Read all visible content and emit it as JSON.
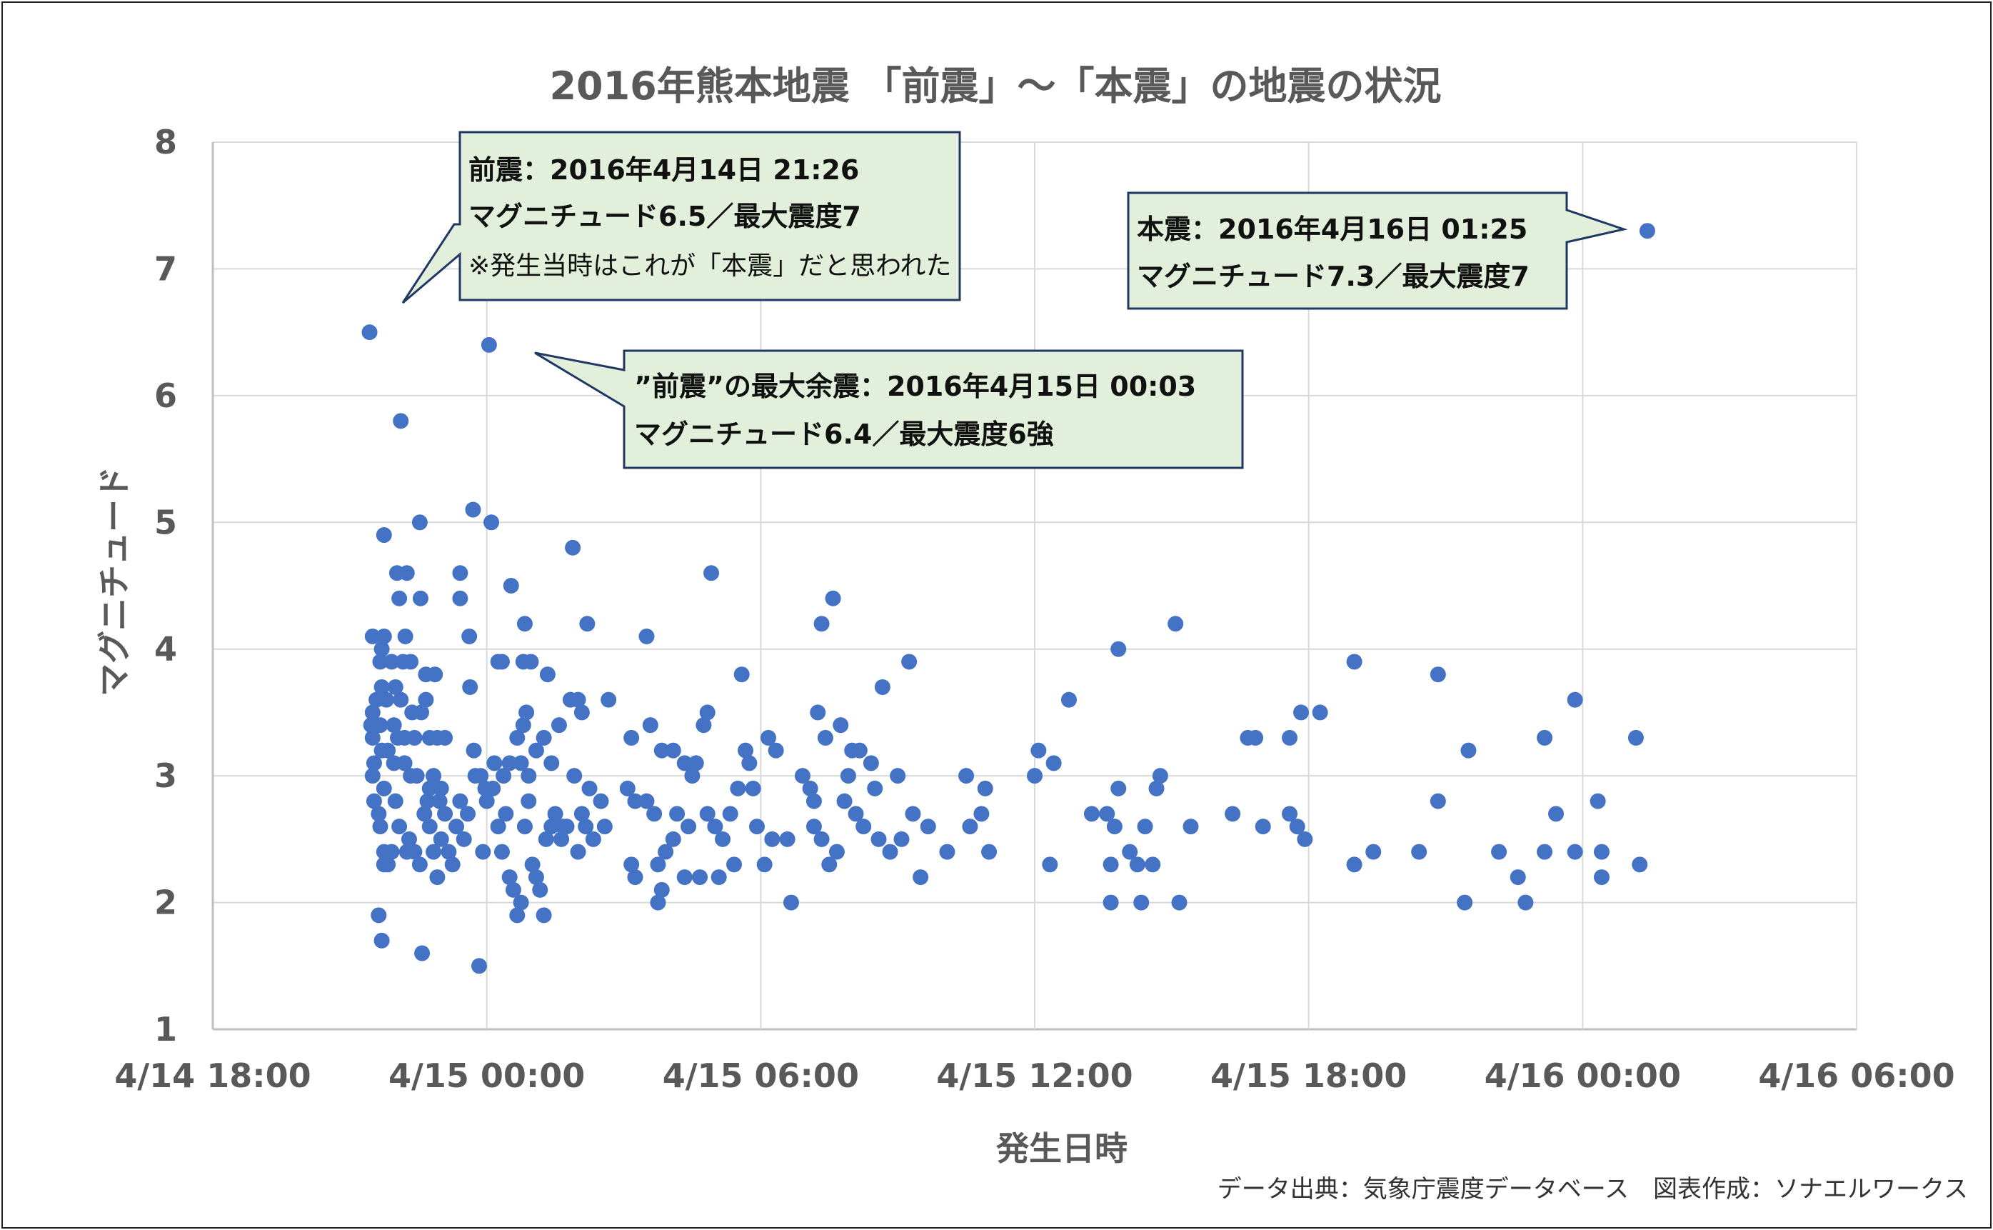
{
  "chart_data": {
    "type": "scatter",
    "title": "2016年熊本地震 「前震」〜「本震」の地震の状況",
    "xlabel": "発生日時",
    "ylabel": "マグニチュード",
    "x_unit": "hours",
    "xlim": [
      "2016-04-14 18:00",
      "2016-04-16 06:00"
    ],
    "x_ticks": [
      {
        "value": "2016-04-14 18:00",
        "label": "4/14 18:00"
      },
      {
        "value": "2016-04-15 00:00",
        "label": "4/15 00:00"
      },
      {
        "value": "2016-04-15 06:00",
        "label": "4/15 06:00"
      },
      {
        "value": "2016-04-15 12:00",
        "label": "4/15 12:00"
      },
      {
        "value": "2016-04-15 18:00",
        "label": "4/15 18:00"
      },
      {
        "value": "2016-04-16 00:00",
        "label": "4/16 00:00"
      },
      {
        "value": "2016-04-16 06:00",
        "label": "4/16 06:00"
      }
    ],
    "ylim": [
      1,
      8
    ],
    "y_ticks": [
      1,
      2,
      3,
      4,
      5,
      6,
      7,
      8
    ],
    "grid": true,
    "marker_color": "#4472c4",
    "points": [
      [
        "2016-04-14 21:26",
        6.5
      ],
      [
        "2016-04-15 00:03",
        6.4
      ],
      [
        "2016-04-16 01:25",
        7.3
      ],
      [
        "2016-04-14 22:07",
        5.8
      ],
      [
        "2016-04-14 21:45",
        4.9
      ],
      [
        "2016-04-14 22:32",
        5.0
      ],
      [
        "2016-04-14 23:42",
        5.1
      ],
      [
        "2016-04-15 00:06",
        5.0
      ],
      [
        "2016-04-15 01:53",
        4.8
      ],
      [
        "2016-04-14 22:15",
        4.6
      ],
      [
        "2016-04-14 22:02",
        4.6
      ],
      [
        "2016-04-14 22:05",
        4.4
      ],
      [
        "2016-04-14 22:33",
        4.4
      ],
      [
        "2016-04-14 23:25",
        4.6
      ],
      [
        "2016-04-14 23:25",
        4.4
      ],
      [
        "2016-04-15 00:32",
        4.5
      ],
      [
        "2016-04-15 00:50",
        4.2
      ],
      [
        "2016-04-15 02:12",
        4.2
      ],
      [
        "2016-04-14 21:30",
        4.1
      ],
      [
        "2016-04-14 21:45",
        4.1
      ],
      [
        "2016-04-14 22:13",
        4.1
      ],
      [
        "2016-04-14 21:42",
        4.0
      ],
      [
        "2016-04-14 22:10",
        3.9
      ],
      [
        "2016-04-14 22:20",
        3.9
      ],
      [
        "2016-04-14 21:55",
        3.9
      ],
      [
        "2016-04-14 21:40",
        3.9
      ],
      [
        "2016-04-14 22:40",
        3.8
      ],
      [
        "2016-04-14 22:52",
        3.8
      ],
      [
        "2016-04-14 23:37",
        4.1
      ],
      [
        "2016-04-15 00:15",
        3.9
      ],
      [
        "2016-04-15 00:20",
        3.9
      ],
      [
        "2016-04-15 00:48",
        3.9
      ],
      [
        "2016-04-15 00:58",
        3.9
      ],
      [
        "2016-04-15 01:20",
        3.8
      ],
      [
        "2016-04-14 23:38",
        3.7
      ],
      [
        "2016-04-14 21:42",
        3.7
      ],
      [
        "2016-04-14 22:00",
        3.7
      ],
      [
        "2016-04-14 21:30",
        3.5
      ],
      [
        "2016-04-14 21:35",
        3.6
      ],
      [
        "2016-04-14 21:48",
        3.6
      ],
      [
        "2016-04-14 22:07",
        3.6
      ],
      [
        "2016-04-14 22:22",
        3.5
      ],
      [
        "2016-04-14 22:34",
        3.5
      ],
      [
        "2016-04-14 22:40",
        3.6
      ],
      [
        "2016-04-14 21:28",
        3.4
      ],
      [
        "2016-04-14 21:40",
        3.4
      ],
      [
        "2016-04-14 21:58",
        3.4
      ],
      [
        "2016-04-14 22:12",
        3.3
      ],
      [
        "2016-04-14 21:30",
        3.3
      ],
      [
        "2016-04-14 21:50",
        3.2
      ],
      [
        "2016-04-14 22:03",
        3.3
      ],
      [
        "2016-04-14 22:25",
        3.3
      ],
      [
        "2016-04-14 22:45",
        3.3
      ],
      [
        "2016-04-14 22:55",
        3.3
      ],
      [
        "2016-04-14 23:05",
        3.3
      ],
      [
        "2016-04-14 21:32",
        3.1
      ],
      [
        "2016-04-14 21:42",
        3.2
      ],
      [
        "2016-04-14 21:58",
        3.1
      ],
      [
        "2016-04-14 22:12",
        3.1
      ],
      [
        "2016-04-14 22:20",
        3.0
      ],
      [
        "2016-04-14 22:28",
        3.0
      ],
      [
        "2016-04-14 21:30",
        3.0
      ],
      [
        "2016-04-14 21:45",
        2.9
      ],
      [
        "2016-04-14 23:00",
        2.9
      ],
      [
        "2016-04-14 22:50",
        3.0
      ],
      [
        "2016-04-14 23:43",
        3.2
      ],
      [
        "2016-04-14 23:45",
        3.0
      ],
      [
        "2016-04-14 23:52",
        3.0
      ],
      [
        "2016-04-14 23:58",
        2.9
      ],
      [
        "2016-04-15 00:10",
        3.1
      ],
      [
        "2016-04-15 00:22",
        3.0
      ],
      [
        "2016-04-15 00:30",
        3.1
      ],
      [
        "2016-04-15 00:45",
        3.1
      ],
      [
        "2016-04-15 00:55",
        3.0
      ],
      [
        "2016-04-15 00:40",
        3.3
      ],
      [
        "2016-04-15 00:48",
        3.4
      ],
      [
        "2016-04-15 00:52",
        3.5
      ],
      [
        "2016-04-15 01:05",
        3.2
      ],
      [
        "2016-04-15 01:15",
        3.3
      ],
      [
        "2016-04-15 01:25",
        3.1
      ],
      [
        "2016-04-15 01:35",
        3.4
      ],
      [
        "2016-04-15 01:50",
        3.6
      ],
      [
        "2016-04-15 02:05",
        3.5
      ],
      [
        "2016-04-15 02:00",
        3.6
      ],
      [
        "2016-04-15 02:40",
        3.6
      ],
      [
        "2016-04-15 01:55",
        3.0
      ],
      [
        "2016-04-15 02:15",
        2.9
      ],
      [
        "2016-04-15 02:30",
        2.8
      ],
      [
        "2016-04-15 02:05",
        2.7
      ],
      [
        "2016-04-15 01:40",
        2.6
      ],
      [
        "2016-04-15 03:05",
        2.9
      ],
      [
        "2016-04-15 03:10",
        3.3
      ],
      [
        "2016-04-15 03:15",
        2.8
      ],
      [
        "2016-04-15 03:35",
        3.4
      ],
      [
        "2016-04-15 03:50",
        3.2
      ],
      [
        "2016-04-15 04:05",
        3.2
      ],
      [
        "2016-04-15 04:20",
        3.1
      ],
      [
        "2016-04-15 04:35",
        3.1
      ],
      [
        "2016-04-15 04:45",
        3.4
      ],
      [
        "2016-04-15 04:50",
        3.5
      ],
      [
        "2016-04-15 04:30",
        3.0
      ],
      [
        "2016-04-15 03:30",
        4.1
      ],
      [
        "2016-04-15 04:55",
        4.6
      ],
      [
        "2016-04-15 05:35",
        3.8
      ],
      [
        "2016-04-15 05:40",
        3.2
      ],
      [
        "2016-04-15 05:45",
        3.1
      ],
      [
        "2016-04-15 05:50",
        2.9
      ],
      [
        "2016-04-15 06:10",
        3.3
      ],
      [
        "2016-04-15 06:20",
        3.2
      ],
      [
        "2016-04-15 07:15",
        3.5
      ],
      [
        "2016-04-15 07:20",
        4.2
      ],
      [
        "2016-04-15 07:25",
        3.3
      ],
      [
        "2016-04-15 07:35",
        4.4
      ],
      [
        "2016-04-15 07:45",
        3.4
      ],
      [
        "2016-04-15 08:00",
        3.2
      ],
      [
        "2016-04-15 08:10",
        3.2
      ],
      [
        "2016-04-15 08:25",
        3.1
      ],
      [
        "2016-04-15 07:55",
        3.0
      ],
      [
        "2016-04-15 08:40",
        3.7
      ],
      [
        "2016-04-15 09:15",
        3.9
      ],
      [
        "2016-04-15 08:30",
        2.9
      ],
      [
        "2016-04-15 09:00",
        3.0
      ],
      [
        "2016-04-15 06:55",
        3.0
      ],
      [
        "2016-04-15 07:05",
        2.9
      ],
      [
        "2016-04-15 07:10",
        2.8
      ],
      [
        "2016-04-15 07:50",
        2.8
      ],
      [
        "2016-04-15 08:05",
        2.7
      ],
      [
        "2016-04-15 08:15",
        2.6
      ],
      [
        "2016-04-15 08:35",
        2.5
      ],
      [
        "2016-04-15 08:50",
        2.4
      ],
      [
        "2016-04-15 09:05",
        2.5
      ],
      [
        "2016-04-15 09:20",
        2.7
      ],
      [
        "2016-04-15 09:40",
        2.6
      ],
      [
        "2016-04-15 10:05",
        2.4
      ],
      [
        "2016-04-15 10:30",
        3.0
      ],
      [
        "2016-04-15 10:55",
        2.9
      ],
      [
        "2016-04-15 10:50",
        2.7
      ],
      [
        "2016-04-15 12:00",
        3.0
      ],
      [
        "2016-04-15 12:05",
        3.2
      ],
      [
        "2016-04-15 12:25",
        3.1
      ],
      [
        "2016-04-15 12:45",
        3.6
      ],
      [
        "2016-04-15 13:50",
        4.0
      ],
      [
        "2016-04-15 15:05",
        4.2
      ],
      [
        "2016-04-15 12:20",
        2.3
      ],
      [
        "2016-04-15 13:15",
        2.7
      ],
      [
        "2016-04-15 13:35",
        2.7
      ],
      [
        "2016-04-15 13:45",
        2.6
      ],
      [
        "2016-04-15 13:50",
        2.9
      ],
      [
        "2016-04-15 14:05",
        2.4
      ],
      [
        "2016-04-15 14:15",
        2.3
      ],
      [
        "2016-04-15 14:25",
        2.6
      ],
      [
        "2016-04-15 14:40",
        2.9
      ],
      [
        "2016-04-15 14:45",
        3.0
      ],
      [
        "2016-04-15 14:35",
        2.3
      ],
      [
        "2016-04-15 13:40",
        2.0
      ],
      [
        "2016-04-15 14:20",
        2.0
      ],
      [
        "2016-04-15 15:10",
        2.0
      ],
      [
        "2016-04-15 13:40",
        2.3
      ],
      [
        "2016-04-15 15:25",
        2.6
      ],
      [
        "2016-04-15 16:20",
        2.7
      ],
      [
        "2016-04-15 16:40",
        3.3
      ],
      [
        "2016-04-15 16:50",
        3.3
      ],
      [
        "2016-04-15 17:00",
        2.6
      ],
      [
        "2016-04-15 17:35",
        3.3
      ],
      [
        "2016-04-15 17:35",
        2.7
      ],
      [
        "2016-04-15 17:45",
        2.6
      ],
      [
        "2016-04-15 17:50",
        3.5
      ],
      [
        "2016-04-15 17:55",
        2.5
      ],
      [
        "2016-04-15 18:15",
        3.5
      ],
      [
        "2016-04-15 19:00",
        2.3
      ],
      [
        "2016-04-15 19:00",
        3.9
      ],
      [
        "2016-04-15 19:25",
        2.4
      ],
      [
        "2016-04-15 20:25",
        2.4
      ],
      [
        "2016-04-15 20:50",
        2.8
      ],
      [
        "2016-04-15 20:50",
        3.8
      ],
      [
        "2016-04-15 21:25",
        2.0
      ],
      [
        "2016-04-15 21:30",
        3.2
      ],
      [
        "2016-04-15 22:10",
        2.4
      ],
      [
        "2016-04-15 22:35",
        2.2
      ],
      [
        "2016-04-15 22:45",
        2.0
      ],
      [
        "2016-04-15 23:10",
        2.4
      ],
      [
        "2016-04-15 23:10",
        3.3
      ],
      [
        "2016-04-15 23:25",
        2.7
      ],
      [
        "2016-04-15 23:50",
        2.4
      ],
      [
        "2016-04-15 23:50",
        3.6
      ],
      [
        "2016-04-16 00:25",
        2.4
      ],
      [
        "2016-04-16 00:20",
        2.8
      ],
      [
        "2016-04-16 00:25",
        2.2
      ],
      [
        "2016-04-16 01:10",
        3.3
      ],
      [
        "2016-04-16 01:15",
        2.3
      ],
      [
        "2016-04-14 21:32",
        2.8
      ],
      [
        "2016-04-14 21:38",
        2.7
      ],
      [
        "2016-04-14 21:40",
        2.6
      ],
      [
        "2016-04-14 21:45",
        2.4
      ],
      [
        "2016-04-14 21:50",
        2.3
      ],
      [
        "2016-04-14 21:55",
        2.4
      ],
      [
        "2016-04-14 22:00",
        2.8
      ],
      [
        "2016-04-14 22:05",
        2.6
      ],
      [
        "2016-04-14 22:18",
        2.5
      ],
      [
        "2016-04-14 22:25",
        2.4
      ],
      [
        "2016-04-14 22:32",
        2.3
      ],
      [
        "2016-04-14 22:38",
        2.7
      ],
      [
        "2016-04-14 22:42",
        2.8
      ],
      [
        "2016-04-14 22:45",
        2.6
      ],
      [
        "2016-04-14 22:50",
        2.4
      ],
      [
        "2016-04-14 22:55",
        2.2
      ],
      [
        "2016-04-14 23:00",
        2.5
      ],
      [
        "2016-04-14 23:05",
        2.7
      ],
      [
        "2016-04-14 23:10",
        2.4
      ],
      [
        "2016-04-14 23:15",
        2.3
      ],
      [
        "2016-04-14 23:20",
        2.6
      ],
      [
        "2016-04-14 23:25",
        2.8
      ],
      [
        "2016-04-14 23:30",
        2.5
      ],
      [
        "2016-04-14 23:35",
        2.7
      ],
      [
        "2016-04-14 23:55",
        2.4
      ],
      [
        "2016-04-14 22:45",
        2.9
      ],
      [
        "2016-04-14 22:58",
        2.8
      ],
      [
        "2016-04-15 00:00",
        2.8
      ],
      [
        "2016-04-15 00:08",
        2.9
      ],
      [
        "2016-04-15 00:15",
        2.6
      ],
      [
        "2016-04-15 00:20",
        2.4
      ],
      [
        "2016-04-15 00:25",
        2.7
      ],
      [
        "2016-04-15 00:30",
        2.2
      ],
      [
        "2016-04-15 00:35",
        2.1
      ],
      [
        "2016-04-15 00:40",
        1.9
      ],
      [
        "2016-04-15 00:45",
        2.0
      ],
      [
        "2016-04-15 00:50",
        2.6
      ],
      [
        "2016-04-15 00:55",
        2.8
      ],
      [
        "2016-04-15 01:00",
        2.3
      ],
      [
        "2016-04-15 01:05",
        2.2
      ],
      [
        "2016-04-15 01:10",
        2.1
      ],
      [
        "2016-04-15 01:15",
        1.9
      ],
      [
        "2016-04-15 01:18",
        2.5
      ],
      [
        "2016-04-15 01:25",
        2.6
      ],
      [
        "2016-04-15 01:30",
        2.7
      ],
      [
        "2016-04-15 01:38",
        2.5
      ],
      [
        "2016-04-15 01:45",
        2.6
      ],
      [
        "2016-04-15 02:00",
        2.4
      ],
      [
        "2016-04-15 02:10",
        2.6
      ],
      [
        "2016-04-15 02:20",
        2.5
      ],
      [
        "2016-04-15 02:35",
        2.6
      ],
      [
        "2016-04-15 03:10",
        2.3
      ],
      [
        "2016-04-15 03:15",
        2.2
      ],
      [
        "2016-04-15 03:30",
        2.8
      ],
      [
        "2016-04-15 03:40",
        2.7
      ],
      [
        "2016-04-15 03:45",
        2.3
      ],
      [
        "2016-04-15 03:50",
        2.1
      ],
      [
        "2016-04-15 03:55",
        2.4
      ],
      [
        "2016-04-15 04:05",
        2.5
      ],
      [
        "2016-04-15 04:10",
        2.7
      ],
      [
        "2016-04-15 04:25",
        2.6
      ],
      [
        "2016-04-15 04:40",
        2.2
      ],
      [
        "2016-04-15 04:50",
        2.7
      ],
      [
        "2016-04-15 05:00",
        2.6
      ],
      [
        "2016-04-15 05:10",
        2.5
      ],
      [
        "2016-04-15 05:20",
        2.7
      ],
      [
        "2016-04-15 05:25",
        2.3
      ],
      [
        "2016-04-15 05:30",
        2.9
      ],
      [
        "2016-04-15 05:55",
        2.6
      ],
      [
        "2016-04-15 06:05",
        2.3
      ],
      [
        "2016-04-15 06:15",
        2.5
      ],
      [
        "2016-04-15 06:40",
        2.0
      ],
      [
        "2016-04-15 06:35",
        2.5
      ],
      [
        "2016-04-15 07:20",
        2.5
      ],
      [
        "2016-04-15 07:40",
        2.4
      ],
      [
        "2016-04-15 07:30",
        2.3
      ],
      [
        "2016-04-15 07:10",
        2.6
      ],
      [
        "2016-04-15 04:20",
        2.2
      ],
      [
        "2016-04-15 05:05",
        2.2
      ],
      [
        "2016-04-15 03:45",
        2.0
      ],
      [
        "2016-04-15 09:30",
        2.2
      ],
      [
        "2016-04-15 10:35",
        2.6
      ],
      [
        "2016-04-15 11:00",
        2.4
      ],
      [
        "2016-04-14 22:35",
        1.6
      ],
      [
        "2016-04-14 23:50",
        1.5
      ],
      [
        "2016-04-14 21:38",
        1.9
      ],
      [
        "2016-04-14 21:42",
        1.7
      ],
      [
        "2016-04-14 21:45",
        2.3
      ],
      [
        "2016-04-14 22:15",
        2.4
      ]
    ]
  },
  "callouts": {
    "foreshock": {
      "line1": "前震：2016年4月14日 21:26",
      "line2": "マグニチュード6.5／最大震度7",
      "line3": "※発生当時はこれが「本震」だと思われた"
    },
    "mainshock": {
      "line1": "本震：2016年4月16日 01:25",
      "line2": "マグニチュード7.3／最大震度7"
    },
    "aftershock": {
      "line1": "”前震”の最大余震：2016年4月15日 00:03",
      "line2": "マグニチュード6.4／最大震度6強"
    }
  },
  "source_note": "データ出典：気象庁震度データベース　図表作成：ソナエルワークス"
}
